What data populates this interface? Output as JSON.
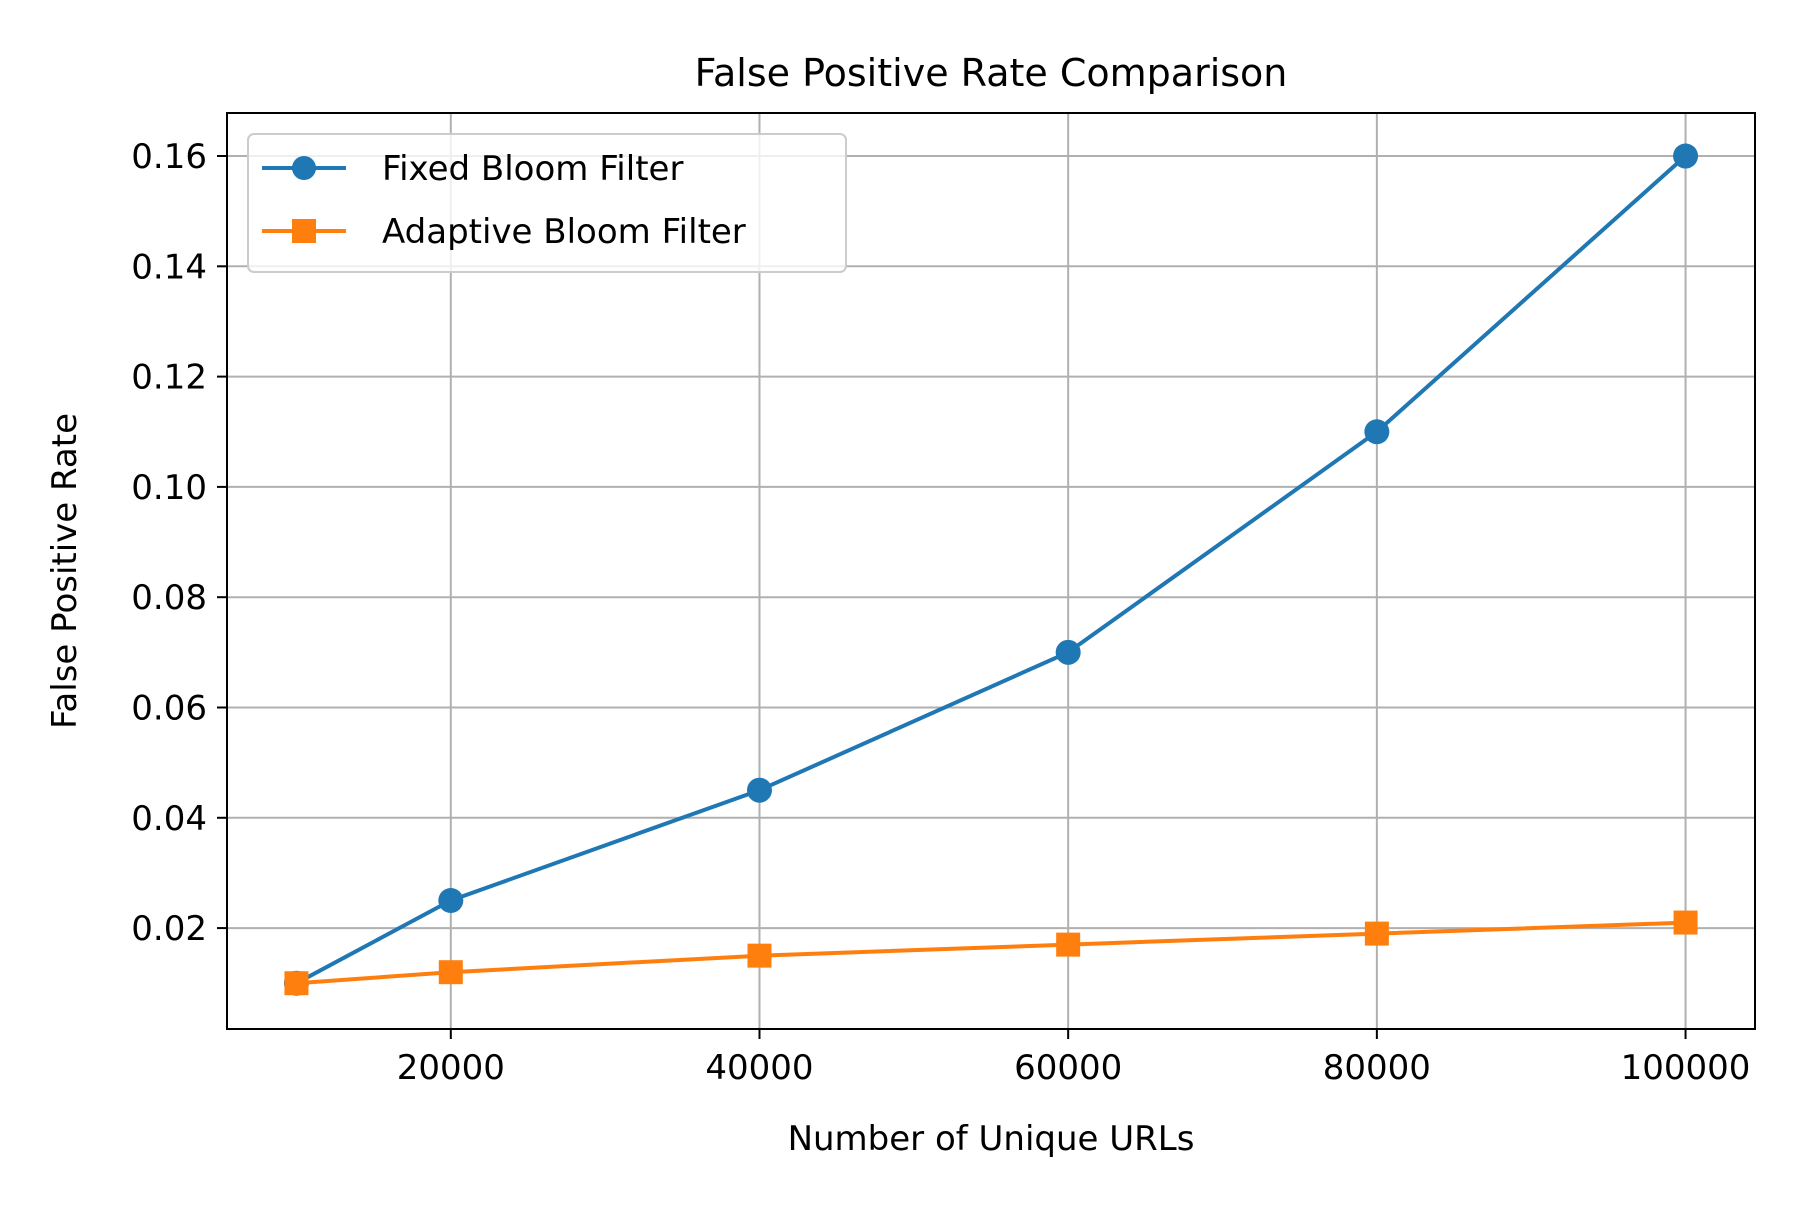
{
  "chart_data": {
    "type": "line",
    "title": "False Positive Rate Comparison",
    "xlabel": "Number of Unique URLs",
    "ylabel": "False Positive Rate",
    "x": [
      10000,
      20000,
      40000,
      60000,
      80000,
      100000
    ],
    "xlim": [
      5500,
      104500
    ],
    "ylim": [
      0.0017,
      0.1678
    ],
    "xticks": [
      20000,
      40000,
      60000,
      80000,
      100000
    ],
    "xtick_labels": [
      "20000",
      "40000",
      "60000",
      "80000",
      "100000"
    ],
    "yticks": [
      0.02,
      0.04,
      0.06,
      0.08,
      0.1,
      0.12,
      0.14,
      0.16
    ],
    "ytick_labels": [
      "0.02",
      "0.04",
      "0.06",
      "0.08",
      "0.10",
      "0.12",
      "0.14",
      "0.16"
    ],
    "grid": true,
    "legend_position": "top-left",
    "series": [
      {
        "name": "Fixed Bloom Filter",
        "values": [
          0.01,
          0.025,
          0.045,
          0.07,
          0.11,
          0.16
        ],
        "color": "#1f77b4",
        "marker": "circle"
      },
      {
        "name": "Adaptive Bloom Filter",
        "values": [
          0.01,
          0.012,
          0.015,
          0.017,
          0.019,
          0.021
        ],
        "color": "#ff7f0e",
        "marker": "square"
      }
    ]
  }
}
